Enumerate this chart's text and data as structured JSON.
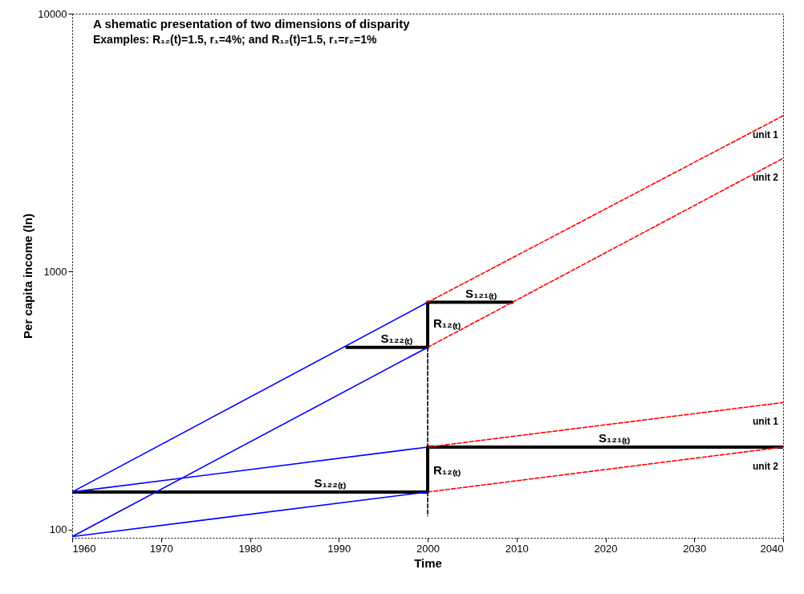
{
  "chart_data": {
    "type": "line",
    "title": "A shematic presentation of two dimensions of disparity",
    "subtitle": "Examples: R₁₂(t)=1.5, r₁=4%; and R₁₂(t)=1.5, r₁=r₂=1%",
    "xlabel": "Time",
    "ylabel": "Per capita income (ln)",
    "log": "y",
    "grid": false,
    "marker": "none",
    "xlim": [
      1960,
      2040
    ],
    "xticks": [
      1960,
      1970,
      1980,
      1990,
      2000,
      2010,
      2020,
      2030,
      2040
    ],
    "ylim": [
      93,
      10000
    ],
    "yticks": [
      100,
      1000,
      10000
    ],
    "series": [
      {
        "type": "step",
        "color": "#000000",
        "line_style": "solid",
        "x": [
          1990.9,
          2000,
          2009.5
        ],
        "values": [
          509,
          761,
          761
        ]
      },
      {
        "type": "step",
        "color": "#000000",
        "line_style": "solid",
        "x": [
          1960,
          2000,
          2040
        ],
        "values": [
          140,
          209,
          209
        ]
      },
      {
        "color": "#0000ff",
        "line_style": "solid",
        "x": [
          1960,
          2000
        ],
        "values": [
          140,
          761
        ]
      },
      {
        "color": "#0000ff",
        "line_style": "solid",
        "x": [
          1960,
          2000
        ],
        "values": [
          94,
          509
        ]
      },
      {
        "color": "#0000ff",
        "line_style": "solid",
        "x": [
          1960,
          2000
        ],
        "values": [
          140,
          209
        ]
      },
      {
        "color": "#0000ff",
        "line_style": "solid",
        "x": [
          1960,
          2000
        ],
        "values": [
          94,
          140
        ]
      },
      {
        "name": "unit 1",
        "color": "#ff0000",
        "line_style": "dashed",
        "x": [
          2000,
          2040
        ],
        "values": [
          761,
          4020
        ]
      },
      {
        "name": "unit 2",
        "color": "#ff0000",
        "line_style": "dashed",
        "x": [
          2000,
          2040
        ],
        "values": [
          509,
          2750
        ]
      },
      {
        "name": "unit 1",
        "color": "#ff0000",
        "line_style": "dashed",
        "x": [
          2000,
          2040
        ],
        "values": [
          209,
          311
        ]
      },
      {
        "name": "unit 2",
        "color": "#ff0000",
        "line_style": "dashed",
        "x": [
          2000,
          2040
        ],
        "values": [
          140,
          209
        ]
      },
      {
        "color": "#000000",
        "line_style": "dashed",
        "x": [
          2000,
          2000
        ],
        "values": [
          509,
          113
        ]
      }
    ],
    "annotations": [
      {
        "text": "S₁₂₁₍ₜ₎",
        "x": 2006,
        "y": 761
      },
      {
        "text": "R₁₂₍ₜ₎",
        "x": 2000,
        "y": 630
      },
      {
        "text": "S₁₂₂₍ₜ₎",
        "x": 1996.5,
        "y": 509
      },
      {
        "text": "S₁₂₁₍ₜ₎",
        "x": 2021,
        "y": 209
      },
      {
        "text": "R₁₂₍ₜ₎",
        "x": 2000,
        "y": 170
      },
      {
        "text": "S₁₂₂₍ₜ₎",
        "x": 1989,
        "y": 140
      }
    ]
  }
}
